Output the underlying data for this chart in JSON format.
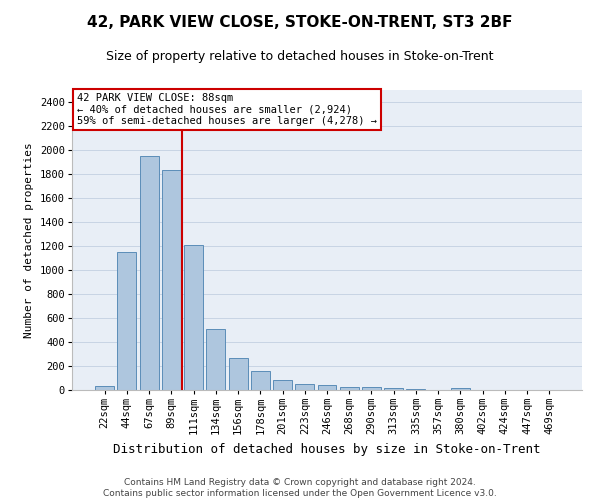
{
  "title": "42, PARK VIEW CLOSE, STOKE-ON-TRENT, ST3 2BF",
  "subtitle": "Size of property relative to detached houses in Stoke-on-Trent",
  "xlabel": "Distribution of detached houses by size in Stoke-on-Trent",
  "ylabel": "Number of detached properties",
  "categories": [
    "22sqm",
    "44sqm",
    "67sqm",
    "89sqm",
    "111sqm",
    "134sqm",
    "156sqm",
    "178sqm",
    "201sqm",
    "223sqm",
    "246sqm",
    "268sqm",
    "290sqm",
    "313sqm",
    "335sqm",
    "357sqm",
    "380sqm",
    "402sqm",
    "424sqm",
    "447sqm",
    "469sqm"
  ],
  "values": [
    30,
    1150,
    1950,
    1830,
    1210,
    510,
    265,
    155,
    80,
    48,
    42,
    22,
    22,
    14,
    10,
    0,
    20,
    0,
    0,
    0,
    0
  ],
  "bar_color": "#aec6de",
  "bar_edge_color": "#5b8db8",
  "grid_color": "#c8d4e4",
  "background_color": "#e8eef6",
  "annotation_box_color": "#cc0000",
  "marker_line_color": "#cc0000",
  "marker_bin_index": 3,
  "annotation_lines": [
    "42 PARK VIEW CLOSE: 88sqm",
    "← 40% of detached houses are smaller (2,924)",
    "59% of semi-detached houses are larger (4,278) →"
  ],
  "footer_lines": [
    "Contains HM Land Registry data © Crown copyright and database right 2024.",
    "Contains public sector information licensed under the Open Government Licence v3.0."
  ],
  "ylim": [
    0,
    2500
  ],
  "yticks": [
    0,
    200,
    400,
    600,
    800,
    1000,
    1200,
    1400,
    1600,
    1800,
    2000,
    2200,
    2400
  ],
  "title_fontsize": 11,
  "subtitle_fontsize": 9,
  "ylabel_fontsize": 8,
  "xlabel_fontsize": 9,
  "tick_fontsize": 7.5,
  "annotation_fontsize": 7.5,
  "footer_fontsize": 6.5
}
